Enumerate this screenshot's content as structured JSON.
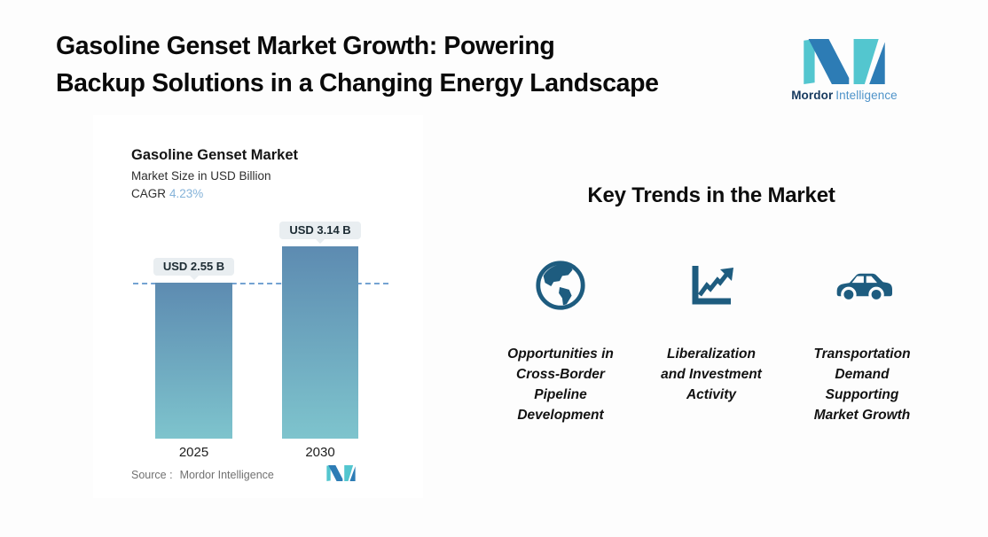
{
  "header": {
    "title_line1": "Gasoline Genset Market Growth: Powering",
    "title_line2": "Backup Solutions in a Changing Energy Landscape"
  },
  "brand": {
    "name_bold": "Mordor",
    "name_regular": "Intelligence"
  },
  "chart": {
    "title": "Gasoline Genset Market",
    "subtitle": "Market Size in USD Billion",
    "cagr_label": "CAGR",
    "cagr_value": "4.23%",
    "source_label": "Source :",
    "source_value": "Mordor Intelligence"
  },
  "chart_data": {
    "type": "bar",
    "title": "Gasoline Genset Market",
    "ylabel": "Market Size in USD Billion",
    "categories": [
      "2025",
      "2030"
    ],
    "values": [
      2.55,
      3.14
    ],
    "value_labels": [
      "USD 2.55 B",
      "USD 3.14 B"
    ],
    "cagr_percent": 4.23,
    "baseline": 0,
    "reference_line_at": 2.55,
    "grid": false,
    "legend": "none",
    "bar_gradient_top": "#5d8bb1",
    "bar_gradient_bottom": "#7ec4cd",
    "reference_line_color": "#74a3d2"
  },
  "trends": {
    "title": "Key Trends in the Market",
    "items": [
      {
        "icon": "globe-icon",
        "label": "Opportunities in\nCross-Border\nPipeline\nDevelopment"
      },
      {
        "icon": "trend-chart-icon",
        "label": "Liberalization\nand Investment\nActivity"
      },
      {
        "icon": "car-icon",
        "label": "Transportation\nDemand\nSupporting\nMarket Growth"
      }
    ]
  },
  "colors": {
    "brand_blue": "#2d7cb5",
    "brand_teal": "#53c6cf",
    "icon_dark_teal": "#1e5c7f",
    "cagr_value_blue": "#85b3d9"
  }
}
